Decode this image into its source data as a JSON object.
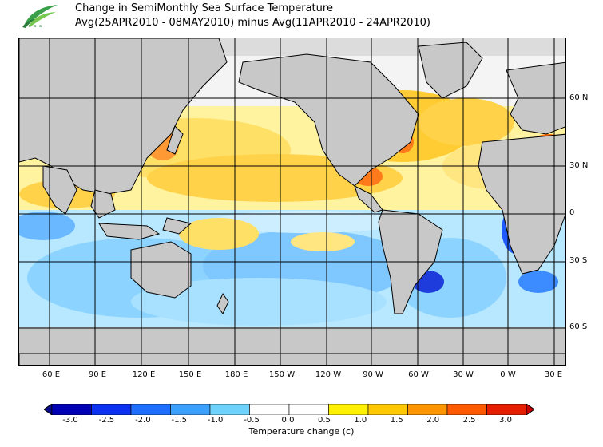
{
  "header": {
    "title": "Change in SemiMonthly Sea Surface Temperature",
    "subtitle": "Avg(25APR2010 - 08MAY2010) minus Avg(11APR2010 - 24APR2010)",
    "logo_caption": "a a a a"
  },
  "map": {
    "lat_labels": [
      "60 N",
      "30 N",
      "0",
      "30 S",
      "60 S"
    ],
    "lon_labels": [
      "60 E",
      "90 E",
      "120 E",
      "150 E",
      "180 E",
      "150 W",
      "120 W",
      "90 W",
      "60 W",
      "30 W",
      "0 W",
      "30 E"
    ]
  },
  "colorbar": {
    "title": "Temperature change  (c)",
    "tick_labels": [
      "-3.0",
      "-2.5",
      "-2.0",
      "-1.5",
      "-1.0",
      "-0.5",
      "0.0",
      "0.5",
      "1.0",
      "1.5",
      "2.0",
      "2.5",
      "3.0"
    ],
    "colors": [
      "#0a0a8c",
      "#0000cc",
      "#0a3cff",
      "#1e78ff",
      "#46aaff",
      "#8cdcff",
      "#ffffff",
      "#fff000",
      "#ffc800",
      "#ff9600",
      "#ff5a00",
      "#e61e00",
      "#c80000"
    ],
    "land_color": "#c8c8c8"
  }
}
